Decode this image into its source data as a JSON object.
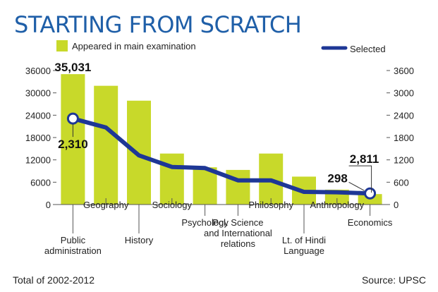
{
  "chart_data": {
    "type": "bar",
    "title": "STARTING FROM SCRATCH",
    "categories": [
      "Public administration",
      "Geography",
      "History",
      "Sociology",
      "Psychology",
      "Pol. Science and International relations",
      "Philosophy",
      "Lt. of Hindi Language",
      "Anthropology",
      "Economics"
    ],
    "category_lines": [
      [
        "Public",
        "administration"
      ],
      [
        "Geography"
      ],
      [
        "History"
      ],
      [
        "Sociology"
      ],
      [
        "Psychology"
      ],
      [
        "Pol. Science",
        "and International",
        "relations"
      ],
      [
        "Philosophy"
      ],
      [
        "Lt. of Hindi",
        "Language"
      ],
      [
        "Anthropology"
      ],
      [
        "Economics"
      ]
    ],
    "series": [
      {
        "name": "Appeared in main examination",
        "type": "bar",
        "axis": "left",
        "color": "#c8d92a",
        "values": [
          35031,
          31900,
          27900,
          13700,
          10000,
          9300,
          13700,
          7500,
          4000,
          2811
        ]
      },
      {
        "name": "Selected",
        "type": "line",
        "axis": "right",
        "color": "#1e3796",
        "values": [
          2310,
          2070,
          1320,
          1010,
          980,
          650,
          650,
          340,
          330,
          298
        ]
      }
    ],
    "y_left": {
      "min": 0,
      "max": 36000,
      "ticks": [
        "0",
        "6000",
        "12000",
        "18000",
        "24000",
        "30000",
        "36000"
      ]
    },
    "y_right": {
      "min": 0,
      "max": 3600,
      "ticks": [
        "0",
        "600",
        "1200",
        "1800",
        "2400",
        "3000",
        "3600"
      ]
    },
    "annotations": [
      {
        "text": "35,031",
        "series": 0,
        "index": 0
      },
      {
        "text": "2,310",
        "series": 1,
        "index": 0
      },
      {
        "text": "298",
        "series": 1,
        "index": 9
      },
      {
        "text": "2,811",
        "series": 0,
        "index": 9
      }
    ],
    "legend_placement": "top",
    "grid": false
  },
  "footer": {
    "note": "Total of 2002-2012",
    "source": "Source: UPSC"
  }
}
